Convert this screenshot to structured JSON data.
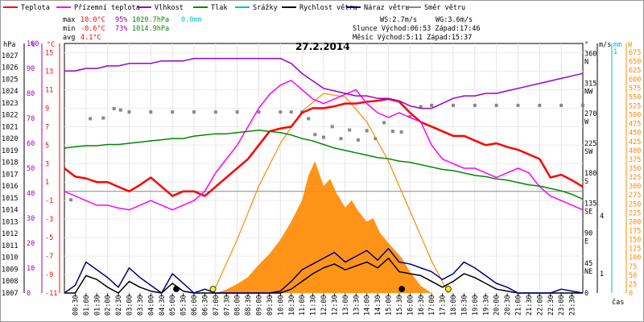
{
  "chart_data": {
    "type": "line",
    "title": "27.2.2014",
    "legend": [
      {
        "label": "Teplota",
        "color": "#ff0000"
      },
      {
        "label": "Přízemní teplota",
        "color": "#ff00ff"
      },
      {
        "label": "Vlhkost",
        "color": "#9900cc"
      },
      {
        "label": "Tlak",
        "color": "#008800"
      },
      {
        "label": "Srážky",
        "color": "#00bbdd"
      },
      {
        "label": "Rychlost větru",
        "color": "#000000"
      },
      {
        "label": "Náraz větru",
        "color": "#000080"
      },
      {
        "label": "Směr větru",
        "color": "#888888"
      }
    ],
    "stats": {
      "max": {
        "label": "max",
        "temp": "10.0°C",
        "hum": "95%",
        "press": "1020.7hPa",
        "rain": "0.0mm"
      },
      "min": {
        "label": "min",
        "temp": "-0.6°C",
        "hum": "73%",
        "press": "1014.9hPa"
      },
      "avg": {
        "label": "avg",
        "temp": "4.1°C"
      }
    },
    "info": {
      "ws": "WS:2.7m/s",
      "wg": "WG:3.6m/s",
      "sun": "Slunce Východ:06:53  Západ:17:46",
      "moon": "Měsíc  Východ:5:11  Západ:15:37"
    },
    "axis_units": {
      "hpa": "hPa",
      "pct": "%",
      "degc": "°C",
      "deg": "°",
      "ms": "m/s",
      "mm": "mm",
      "w": "W",
      "time": "čas"
    },
    "axes": {
      "pressure": {
        "ylim": [
          1007,
          1028
        ],
        "ticks": [
          1007,
          1008,
          1009,
          1010,
          1011,
          1012,
          1013,
          1014,
          1015,
          1016,
          1017,
          1018,
          1019,
          1020,
          1021,
          1022,
          1023,
          1024,
          1025,
          1026,
          1027
        ]
      },
      "humidity": {
        "ylim": [
          0,
          100
        ],
        "ticks": [
          0,
          10,
          20,
          30,
          40,
          50,
          60,
          70,
          80,
          90,
          100
        ]
      },
      "temperature": {
        "ylim": [
          -11,
          16
        ],
        "ticks": [
          -11,
          -9,
          -7,
          -5,
          -3,
          -1,
          1,
          3,
          5,
          7,
          9,
          11,
          13,
          15
        ]
      },
      "direction": {
        "ticks": [
          {
            "v": 360,
            "n": "N"
          },
          {
            "v": 315,
            "n": "NW"
          },
          {
            "v": 270,
            "n": "W"
          },
          {
            "v": 225,
            "n": "SW"
          },
          {
            "v": 180,
            "n": "S"
          },
          {
            "v": 135,
            "n": "SE"
          },
          {
            "v": 90,
            "n": "E"
          },
          {
            "v": 45,
            "n": "NE"
          },
          {
            "v": 0,
            "n": ""
          }
        ]
      },
      "wind_ms": {
        "ticks": [
          1,
          4
        ]
      },
      "rain_mm": {
        "ticks": [
          1
        ]
      },
      "solar_w": {
        "ylim": [
          0,
          700
        ],
        "ticks": [
          0,
          25,
          50,
          75,
          100,
          125,
          150,
          175,
          200,
          225,
          250,
          275,
          300,
          325,
          350,
          375,
          400,
          425,
          450,
          475,
          500,
          525,
          550,
          575,
          600,
          625,
          650,
          675
        ]
      },
      "time": {
        "ticks": [
          "00:30",
          "01:00",
          "01:30",
          "02:00",
          "02:30",
          "03:00",
          "03:30",
          "04:00",
          "04:30",
          "05:00",
          "05:30",
          "06:00",
          "06:30",
          "07:00",
          "07:30",
          "08:00",
          "08:30",
          "09:00",
          "09:30",
          "10:00",
          "10:30",
          "11:00",
          "11:30",
          "12:00",
          "12:30",
          "13:00",
          "13:30",
          "14:00",
          "14:30",
          "15:00",
          "15:30",
          "16:00",
          "16:30",
          "17:00",
          "17:30",
          "18:00",
          "18:30",
          "19:00",
          "19:30",
          "20:00",
          "20:30",
          "21:00",
          "21:30",
          "22:00",
          "22:30",
          "23:00",
          "23:30"
        ]
      }
    },
    "series": [
      {
        "name": "Teplota",
        "axis": "temperature",
        "color": "#ff0000",
        "x": [
          0,
          0.5,
          1,
          1.5,
          2,
          2.5,
          3,
          3.5,
          4,
          4.5,
          5,
          5.5,
          6,
          6.5,
          7,
          7.5,
          8,
          8.5,
          9,
          9.5,
          10,
          10.5,
          11,
          11.5,
          12,
          12.5,
          13,
          13.5,
          14,
          14.5,
          15,
          15.5,
          16,
          16.5,
          17,
          17.5,
          18,
          18.5,
          19,
          19.5,
          20,
          20.5,
          21,
          21.5,
          22,
          22.5,
          23,
          23.5,
          24
        ],
        "values": [
          2.5,
          1.6,
          1.4,
          1.0,
          1.0,
          0.5,
          0.0,
          0.7,
          1.5,
          0.5,
          -0.5,
          0.0,
          0.0,
          -0.5,
          0.5,
          1.5,
          2.5,
          3.5,
          5.0,
          6.5,
          6.8,
          7.0,
          8.5,
          9.0,
          9.0,
          9.2,
          9.5,
          9.5,
          9.7,
          9.8,
          10.0,
          9.7,
          8.5,
          7.5,
          7.0,
          6.5,
          6.0,
          6.0,
          5.5,
          5.0,
          5.2,
          4.8,
          4.5,
          4.0,
          3.5,
          1.5,
          1.8,
          1.2,
          0.5
        ]
      },
      {
        "name": "Přízemní teplota",
        "axis": "temperature",
        "color": "#ff00ff",
        "x": [
          0,
          0.5,
          1,
          1.5,
          2,
          2.5,
          3,
          3.5,
          4,
          4.5,
          5,
          5.5,
          6,
          6.5,
          7,
          7.5,
          8,
          8.5,
          9,
          9.5,
          10,
          10.5,
          11,
          11.5,
          12,
          12.5,
          13,
          13.5,
          14,
          14.5,
          15,
          15.5,
          16,
          16.5,
          17,
          17.5,
          18,
          18.5,
          19,
          19.5,
          20,
          20.5,
          21,
          21.5,
          22,
          22.5,
          23,
          23.5,
          24
        ],
        "values": [
          0.0,
          -0.5,
          -1.0,
          -1.5,
          -1.5,
          -1.8,
          -2.0,
          -1.5,
          -1.0,
          -1.5,
          -2.0,
          -1.5,
          -1.0,
          0.0,
          2.0,
          3.5,
          5.0,
          7.0,
          9.0,
          10.5,
          11.5,
          12.0,
          11.0,
          10.0,
          9.5,
          10.0,
          10.5,
          11.0,
          9.5,
          8.5,
          8.0,
          8.5,
          8.0,
          7.5,
          5.0,
          3.5,
          3.0,
          2.5,
          2.5,
          2.0,
          1.5,
          2.0,
          2.5,
          2.0,
          0.5,
          -0.5,
          -1.0,
          -1.5,
          -2.0
        ]
      },
      {
        "name": "Vlhkost",
        "axis": "humidity",
        "color": "#9900cc",
        "x": [
          0,
          0.5,
          1,
          1.5,
          2,
          2.5,
          3,
          3.5,
          4,
          4.5,
          5,
          5.5,
          6,
          6.5,
          7,
          7.5,
          8,
          8.5,
          9,
          9.5,
          10,
          10.5,
          11,
          11.5,
          12,
          12.5,
          13,
          13.5,
          14,
          14.5,
          15,
          15.5,
          16,
          16.5,
          17,
          17.5,
          18,
          18.5,
          19,
          19.5,
          20,
          20.5,
          21,
          21.5,
          22,
          22.5,
          23,
          23.5,
          24
        ],
        "values": [
          89,
          89,
          90,
          90,
          91,
          91,
          92,
          92,
          92,
          93,
          93,
          93,
          94,
          94,
          94,
          94,
          94,
          94,
          94,
          94,
          94,
          92,
          88,
          85,
          82,
          81,
          80,
          79,
          79,
          78,
          78,
          77,
          75,
          74,
          74,
          76,
          78,
          79,
          79,
          80,
          80,
          81,
          82,
          83,
          84,
          85,
          86,
          87,
          88
        ]
      },
      {
        "name": "Tlak",
        "axis": "pressure",
        "color": "#008800",
        "x": [
          0,
          0.5,
          1,
          1.5,
          2,
          2.5,
          3,
          3.5,
          4,
          4.5,
          5,
          5.5,
          6,
          6.5,
          7,
          7.5,
          8,
          8.5,
          9,
          9.5,
          10,
          10.5,
          11,
          11.5,
          12,
          12.5,
          13,
          13.5,
          14,
          14.5,
          15,
          15.5,
          16,
          16.5,
          17,
          17.5,
          18,
          18.5,
          19,
          19.5,
          20,
          20.5,
          21,
          21.5,
          22,
          22.5,
          23,
          23.5,
          24
        ],
        "values": [
          1019.2,
          1019.3,
          1019.4,
          1019.4,
          1019.5,
          1019.5,
          1019.6,
          1019.7,
          1019.8,
          1019.9,
          1020.0,
          1020.0,
          1020.2,
          1020.3,
          1020.4,
          1020.4,
          1020.5,
          1020.6,
          1020.7,
          1020.6,
          1020.5,
          1020.3,
          1020.0,
          1019.8,
          1019.5,
          1019.2,
          1019.0,
          1018.8,
          1018.6,
          1018.4,
          1018.3,
          1018.1,
          1018.0,
          1017.8,
          1017.6,
          1017.4,
          1017.3,
          1017.1,
          1016.9,
          1016.8,
          1016.6,
          1016.5,
          1016.3,
          1016.1,
          1016.0,
          1015.8,
          1015.6,
          1015.3,
          1014.9
        ]
      },
      {
        "name": "Rychlost větru",
        "axis": "wind_ms",
        "color": "#000000",
        "x": [
          0,
          0.5,
          1,
          1.5,
          2,
          2.5,
          3,
          3.5,
          4,
          4.5,
          5,
          5.5,
          6,
          6.5,
          7,
          7.5,
          8,
          8.5,
          9,
          9.5,
          10,
          10.5,
          11,
          11.5,
          12,
          12.5,
          13,
          13.5,
          14,
          14.5,
          15,
          15.5,
          16,
          16.5,
          17,
          17.5,
          18,
          18.5,
          19,
          19.5,
          20,
          20.5,
          21,
          21.5,
          22,
          22.5,
          23,
          23.5,
          24
        ],
        "values": [
          0,
          0,
          0.9,
          0.7,
          0.3,
          0,
          0.6,
          0.3,
          0.1,
          0,
          0.5,
          0.1,
          0,
          0,
          0,
          0,
          0,
          0,
          0,
          0,
          0,
          0.2,
          0.6,
          1.0,
          1.3,
          1.5,
          1.2,
          1.4,
          1.6,
          1.3,
          1.8,
          1.1,
          1.0,
          0.9,
          0.6,
          0.3,
          0.6,
          1.0,
          0.8,
          0.5,
          0.2,
          0.1,
          0,
          0,
          0,
          0,
          0,
          0,
          0
        ]
      },
      {
        "name": "Náraz větru",
        "axis": "wind_ms",
        "color": "#000080",
        "x": [
          0,
          0.5,
          1,
          1.5,
          2,
          2.5,
          3,
          3.5,
          4,
          4.5,
          5,
          5.5,
          6,
          6.5,
          7,
          7.5,
          8,
          8.5,
          9,
          9.5,
          10,
          10.5,
          11,
          11.5,
          12,
          12.5,
          13,
          13.5,
          14,
          14.5,
          15,
          15.5,
          16,
          16.5,
          17,
          17.5,
          18,
          18.5,
          19,
          19.5,
          20,
          20.5,
          21,
          21.5,
          22,
          22.5,
          23,
          23.5,
          24
        ],
        "values": [
          0,
          0.4,
          1.6,
          1.2,
          0.8,
          0.3,
          1.3,
          0.8,
          0.4,
          0,
          1.0,
          0.5,
          0,
          0.2,
          0,
          0,
          0,
          0,
          0,
          0,
          0.1,
          0.6,
          1.2,
          1.5,
          1.8,
          2.1,
          1.6,
          1.9,
          2.2,
          1.7,
          2.3,
          1.6,
          1.5,
          1.3,
          1.1,
          0.7,
          1.0,
          1.6,
          1.3,
          0.9,
          0.5,
          0.3,
          0,
          0,
          0,
          0,
          0.2,
          0.1,
          0
        ]
      },
      {
        "name": "Směr větru",
        "axis": "direction",
        "color": "#888888",
        "x": [
          0.3,
          1.2,
          1.8,
          2.3,
          2.6,
          3,
          4,
          5,
          6,
          7,
          8,
          9,
          10,
          10.5,
          11.0,
          11.3,
          11.6,
          12.0,
          12.4,
          12.8,
          13.2,
          13.6,
          14.0,
          14.4,
          14.8,
          15.2,
          15.6,
          16.0,
          16.5,
          17,
          18,
          19,
          20,
          21,
          22,
          23,
          24
        ],
        "values": [
          140,
          262,
          263,
          277,
          275,
          272,
          272,
          272,
          272,
          272,
          272,
          272,
          272,
          272,
          272,
          262,
          238,
          234,
          250,
          232,
          245,
          230,
          244,
          232,
          256,
          243,
          242,
          265,
          280,
          282,
          282,
          282,
          282,
          282,
          282,
          282,
          282
        ]
      }
    ],
    "solar": {
      "name": "Solární záření",
      "axis": "solar_w",
      "color": "#ff8800",
      "x": [
        7.0,
        7.5,
        8.0,
        8.5,
        9.0,
        9.5,
        10.0,
        10.5,
        11.0,
        11.3,
        11.6,
        12.0,
        12.3,
        12.6,
        13.0,
        13.3,
        13.6,
        14.0,
        14.3,
        14.6,
        15.0,
        15.3,
        15.6,
        16.0,
        16.5,
        17.0
      ],
      "values": [
        0,
        10,
        25,
        45,
        80,
        110,
        150,
        200,
        260,
        330,
        370,
        300,
        320,
        280,
        240,
        260,
        230,
        200,
        210,
        170,
        140,
        120,
        100,
        60,
        20,
        0
      ]
    },
    "theoretical_solar": {
      "x": [
        6.88,
        8,
        9,
        10,
        11,
        12,
        13,
        14,
        15,
        16,
        17,
        17.77
      ],
      "values": [
        0,
        150,
        300,
        420,
        510,
        560,
        550,
        480,
        370,
        230,
        90,
        0
      ]
    },
    "markers": [
      {
        "type": "moonrise",
        "time": 5.18,
        "fill": "#000000"
      },
      {
        "type": "sunrise",
        "time": 6.88,
        "fill": "#ffee00"
      },
      {
        "type": "moonset",
        "time": 15.62,
        "fill": "#000000"
      },
      {
        "type": "sunset",
        "time": 17.77,
        "fill": "#ffee00"
      }
    ]
  }
}
